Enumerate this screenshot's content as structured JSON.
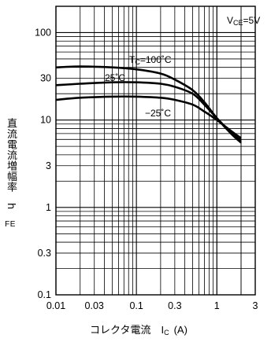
{
  "chart_data": {
    "type": "line",
    "x_scale": "log",
    "y_scale": "log",
    "xlim": [
      0.01,
      3
    ],
    "ylim": [
      0.1,
      200
    ],
    "x_tick_labels": [
      "0.01",
      "0.03",
      "0.1",
      "0.3",
      "1",
      "3"
    ],
    "x_ticks": [
      0.01,
      0.03,
      0.1,
      0.3,
      1,
      3
    ],
    "y_tick_labels": [
      "0.1",
      "0.3",
      "1",
      "3",
      "10",
      "30",
      "100"
    ],
    "y_ticks": [
      0.1,
      0.3,
      1,
      3,
      10,
      30,
      100
    ],
    "xlabel": "コレクタ電流　I",
    "xlabel_sub": "C",
    "xlabel_unit": "(A)",
    "ylabel": "直流電流増幅率　h",
    "ylabel_sub": "FE",
    "condition_main": "V",
    "condition_sub": "CE",
    "condition_value": "=5V",
    "grid": true,
    "series": [
      {
        "name_main": "T",
        "name_sub": "C",
        "name_value": "=100˚C",
        "x": [
          0.01,
          0.02,
          0.05,
          0.1,
          0.2,
          0.3,
          0.5,
          0.7,
          1.0,
          1.5,
          2.0
        ],
        "y": [
          40,
          41,
          40,
          38,
          34,
          29,
          22,
          16,
          10.5,
          7.0,
          5.5
        ]
      },
      {
        "name_main": "25˚C",
        "name_sub": "",
        "name_value": "",
        "x": [
          0.01,
          0.02,
          0.05,
          0.1,
          0.2,
          0.3,
          0.5,
          0.7,
          1.0,
          1.5,
          2.0
        ],
        "y": [
          25,
          26,
          27,
          27,
          26,
          24,
          20,
          15,
          10.5,
          7.2,
          5.8
        ]
      },
      {
        "name_main": "−25˚C",
        "name_sub": "",
        "name_value": "",
        "x": [
          0.01,
          0.02,
          0.05,
          0.1,
          0.2,
          0.3,
          0.5,
          0.7,
          1.0,
          1.5,
          2.0
        ],
        "y": [
          17,
          18,
          18.5,
          18.5,
          18,
          17,
          15,
          12.5,
          10,
          7.5,
          6.2
        ]
      }
    ]
  },
  "colors": {
    "axis": "#000000",
    "grid": "#000000",
    "curve": "#000000"
  }
}
